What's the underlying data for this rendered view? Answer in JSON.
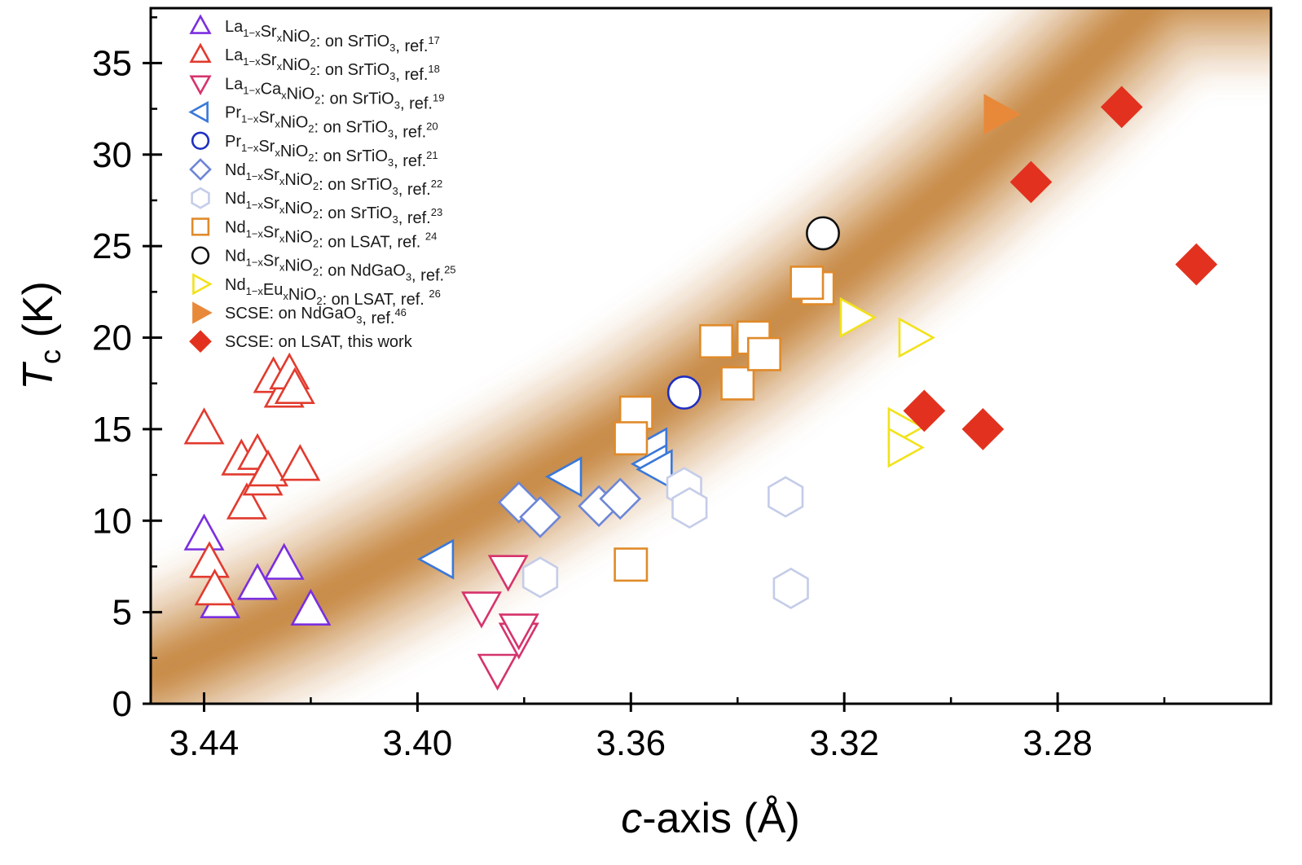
{
  "chart_data": {
    "type": "scatter",
    "xlabel_italic": "c",
    "xlabel_rest": "-axis (Å)",
    "ylabel_italic": "T",
    "ylabel_sub": "c",
    "ylabel_rest": " (K)",
    "xlim": [
      3.45,
      3.24
    ],
    "x_reversed": true,
    "ylim": [
      0,
      38
    ],
    "x_ticks": [
      3.44,
      3.4,
      3.36,
      3.32,
      3.28
    ],
    "x_tick_labels": [
      "3.44",
      "3.40",
      "3.36",
      "3.32",
      "3.28"
    ],
    "x_minor_ticks": [
      3.42,
      3.38,
      3.34,
      3.3,
      3.26
    ],
    "y_ticks": [
      0,
      5,
      10,
      15,
      20,
      25,
      30,
      35
    ],
    "y_tick_labels": [
      "0",
      "5",
      "10",
      "15",
      "20",
      "25",
      "30",
      "35"
    ],
    "band": {
      "description": "guide to the eye, quadratic trend",
      "curve": [
        [
          3.45,
          1.6
        ],
        [
          3.42,
          5.5
        ],
        [
          3.4,
          8.6
        ],
        [
          3.38,
          11.9
        ],
        [
          3.36,
          15.3
        ],
        [
          3.34,
          19.2
        ],
        [
          3.32,
          23.6
        ],
        [
          3.3,
          28.3
        ],
        [
          3.28,
          33.5
        ],
        [
          3.26,
          39.0
        ]
      ],
      "color": "#c07a2c"
    },
    "series": [
      {
        "name": "La1-xSrxNiO2: on SrTiO3, ref.17",
        "legend": {
          "a": "La",
          "a_sub": "1−x",
          "b": "Sr",
          "b_sub": "x",
          "c": "NiO",
          "c_sub": "2",
          "d": ": on SrTiO",
          "d_sub": "3",
          "e": ", ref.",
          "sup": "17"
        },
        "marker": "triangle-up",
        "color": "#7a2ee0",
        "filled": false,
        "points": [
          [
            3.44,
            9.2
          ],
          [
            3.437,
            5.5
          ],
          [
            3.43,
            6.5
          ],
          [
            3.425,
            7.6
          ],
          [
            3.42,
            5.1
          ]
        ]
      },
      {
        "name": "La1-xSrxNiO2: on SrTiO3, ref.18",
        "legend": {
          "a": "La",
          "a_sub": "1−x",
          "b": "Sr",
          "b_sub": "x",
          "c": "NiO",
          "c_sub": "2",
          "d": ": on SrTiO",
          "d_sub": "3",
          "e": ", ref.",
          "sup": "18"
        },
        "marker": "triangle-up",
        "color": "#e23a2e",
        "filled": false,
        "points": [
          [
            3.44,
            15.0
          ],
          [
            3.439,
            7.7
          ],
          [
            3.438,
            6.2
          ],
          [
            3.433,
            13.3
          ],
          [
            3.432,
            10.9
          ],
          [
            3.43,
            13.6
          ],
          [
            3.429,
            12.2
          ],
          [
            3.428,
            12.7
          ],
          [
            3.427,
            17.8
          ],
          [
            3.425,
            17.0
          ],
          [
            3.424,
            18.0
          ],
          [
            3.423,
            17.2
          ],
          [
            3.422,
            13.0
          ]
        ]
      },
      {
        "name": "La1-xCaxNiO2: on SrTiO3, ref.19",
        "legend": {
          "a": "La",
          "a_sub": "1−x",
          "b": "Ca",
          "b_sub": "x",
          "c": "NiO",
          "c_sub": "2",
          "d": ": on SrTiO",
          "d_sub": "3",
          "e": ", ref.",
          "sup": "19"
        },
        "marker": "triangle-down",
        "color": "#d6336c",
        "filled": false,
        "points": [
          [
            3.388,
            5.3
          ],
          [
            3.385,
            1.9
          ],
          [
            3.383,
            7.3
          ],
          [
            3.381,
            3.6
          ],
          [
            3.381,
            4.1
          ]
        ]
      },
      {
        "name": "Pr1-xSrxNiO2: on SrTiO3, ref.20",
        "legend": {
          "a": "Pr",
          "a_sub": "1−x",
          "b": "Sr",
          "b_sub": "x",
          "c": "NiO",
          "c_sub": "2",
          "d": ": on SrTiO",
          "d_sub": "3",
          "e": ", ref.",
          "sup": "20"
        },
        "marker": "triangle-left",
        "color": "#3a78d8",
        "filled": false,
        "points": [
          [
            3.396,
            7.9
          ],
          [
            3.372,
            12.4
          ],
          [
            3.356,
            14.0
          ],
          [
            3.356,
            13.1
          ],
          [
            3.355,
            12.8
          ]
        ]
      },
      {
        "name": "Pr1-xSrxNiO2: on SrTiO3, ref.21",
        "legend": {
          "a": "Pr",
          "a_sub": "1−x",
          "b": "Sr",
          "b_sub": "x",
          "c": "NiO",
          "c_sub": "2",
          "d": ": on SrTiO",
          "d_sub": "3",
          "e": ", ref.",
          "sup": "21"
        },
        "marker": "circle",
        "color": "#1f2fc0",
        "filled": false,
        "points": [
          [
            3.35,
            17.0
          ]
        ]
      },
      {
        "name": "Nd1-xSrxNiO2: on SrTiO3, ref.22",
        "legend": {
          "a": "Nd",
          "a_sub": "1−x",
          "b": "Sr",
          "b_sub": "x",
          "c": "NiO",
          "c_sub": "2",
          "d": ": on SrTiO",
          "d_sub": "3",
          "e": ", ref.",
          "sup": "22"
        },
        "marker": "diamond",
        "color": "#6d86d6",
        "filled": false,
        "points": [
          [
            3.381,
            11.0
          ],
          [
            3.377,
            10.2
          ],
          [
            3.366,
            10.8
          ],
          [
            3.362,
            11.2
          ]
        ]
      },
      {
        "name": "Nd1-xSrxNiO2: on SrTiO3, ref.23",
        "legend": {
          "a": "Nd",
          "a_sub": "1−x",
          "b": "Sr",
          "b_sub": "x",
          "c": "NiO",
          "c_sub": "2",
          "d": ": on SrTiO",
          "d_sub": "3",
          "e": ", ref.",
          "sup": "23"
        },
        "marker": "hexagon",
        "color": "#c4cce8",
        "filled": false,
        "points": [
          [
            3.377,
            6.9
          ],
          [
            3.35,
            11.8
          ],
          [
            3.349,
            10.7
          ],
          [
            3.331,
            11.3
          ],
          [
            3.33,
            6.3
          ]
        ]
      },
      {
        "name": "Nd1-xSrxNiO2: on LSAT, ref. 24",
        "legend": {
          "a": "Nd",
          "a_sub": "1−x",
          "b": "Sr",
          "b_sub": "x",
          "c": "NiO",
          "c_sub": "2",
          "d": ": on LSAT, ref. ",
          "d_sub": "",
          "e": "",
          "sup": "24"
        },
        "marker": "square",
        "color": "#e08a2a",
        "filled": false,
        "points": [
          [
            3.36,
            7.6
          ],
          [
            3.359,
            15.9
          ],
          [
            3.36,
            14.5
          ],
          [
            3.344,
            19.8
          ],
          [
            3.34,
            17.5
          ],
          [
            3.337,
            20.0
          ],
          [
            3.335,
            19.1
          ],
          [
            3.325,
            22.7
          ],
          [
            3.327,
            23.0
          ]
        ]
      },
      {
        "name": "Nd1-xSrxNiO2: on NdGaO3, ref.25",
        "legend": {
          "a": "Nd",
          "a_sub": "1−x",
          "b": "Sr",
          "b_sub": "x",
          "c": "NiO",
          "c_sub": "2",
          "d": ": on NdGaO",
          "d_sub": "3",
          "e": ", ref.",
          "sup": "25"
        },
        "marker": "circle",
        "color": "#111111",
        "filled": false,
        "points": [
          [
            3.324,
            25.7
          ]
        ]
      },
      {
        "name": "Nd1-xEuxNiO2: on LSAT, ref. 26",
        "legend": {
          "a": "Nd",
          "a_sub": "1−x",
          "b": "Eu",
          "b_sub": "x",
          "c": "NiO",
          "c_sub": "2",
          "d": ": on LSAT, ref. ",
          "d_sub": "",
          "e": "",
          "sup": "26"
        },
        "marker": "triangle-right",
        "color": "#f2e21a",
        "filled": false,
        "points": [
          [
            3.318,
            21.1
          ],
          [
            3.307,
            20.0
          ],
          [
            3.309,
            15.1
          ],
          [
            3.309,
            14.0
          ]
        ]
      },
      {
        "name": "SCSE: on NdGaO3, ref.46",
        "legend": {
          "a": "SCSE: on NdGaO",
          "a_sub": "3",
          "b": ", ref.",
          "b_sub": "",
          "c": "",
          "c_sub": "",
          "d": "",
          "d_sub": "",
          "e": "",
          "sup": "46"
        },
        "marker": "triangle-right",
        "color": "#e8893a",
        "filled": true,
        "points": [
          [
            3.291,
            32.2
          ]
        ]
      },
      {
        "name": "SCSE: on LSAT, this work",
        "legend": {
          "a": "SCSE: on LSAT, this work",
          "a_sub": "",
          "b": "",
          "b_sub": "",
          "c": "",
          "c_sub": "",
          "d": "",
          "d_sub": "",
          "e": "",
          "sup": ""
        },
        "marker": "diamond",
        "color": "#e2321f",
        "filled": true,
        "points": [
          [
            3.268,
            32.6
          ],
          [
            3.285,
            28.5
          ],
          [
            3.254,
            24.0
          ],
          [
            3.305,
            16.0
          ],
          [
            3.294,
            15.0
          ]
        ]
      }
    ]
  }
}
